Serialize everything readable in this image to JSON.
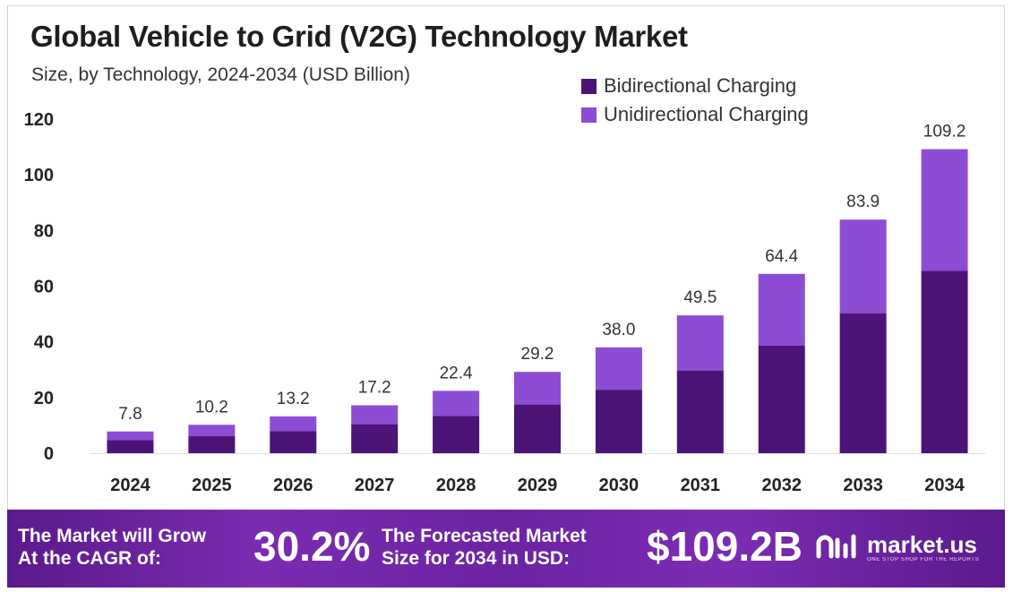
{
  "header": {
    "title": "Global Vehicle to Grid (V2G) Technology Market",
    "subtitle": "Size, by Technology, 2024-2034 (USD Billion)"
  },
  "colors": {
    "bidirectional": "#4b1476",
    "unidirectional": "#8c4cd4",
    "axis_text": "#222222",
    "label_text": "#333333"
  },
  "chart_data": {
    "type": "bar",
    "stacked": true,
    "title": "Global Vehicle to Grid (V2G) Technology Market",
    "subtitle": "Size, by Technology, 2024-2034 (USD Billion)",
    "xlabel": "",
    "ylabel": "",
    "ylim": [
      0,
      120
    ],
    "yticks": [
      0,
      20,
      40,
      60,
      80,
      100,
      120
    ],
    "grid": false,
    "legend_position": "top-right",
    "categories": [
      "2024",
      "2025",
      "2026",
      "2027",
      "2028",
      "2029",
      "2030",
      "2031",
      "2032",
      "2033",
      "2034"
    ],
    "series": [
      {
        "name": "Bidirectional Charging",
        "values": [
          4.7,
          6.1,
          7.9,
          10.3,
          13.4,
          17.5,
          22.8,
          29.7,
          38.6,
          50.3,
          65.5
        ]
      },
      {
        "name": "Unidirectional Charging",
        "values": [
          3.1,
          4.1,
          5.3,
          6.9,
          9.0,
          11.7,
          15.2,
          19.8,
          25.8,
          33.6,
          43.7
        ]
      }
    ],
    "totals": [
      "7.8",
      "10.2",
      "13.2",
      "17.2",
      "22.4",
      "29.2",
      "38.0",
      "49.5",
      "64.4",
      "83.9",
      "109.2"
    ]
  },
  "banner": {
    "cagr_line1": "The Market will Grow",
    "cagr_line2": "At the CAGR of:",
    "cagr_value": "30.2%",
    "forecast_line1": "The Forecasted Market",
    "forecast_line2": "Size for 2034 in USD:",
    "forecast_value": "$109.2B",
    "brand_name": "market.us",
    "brand_tagline": "ONE STOP SHOP FOR THE REPORTS"
  }
}
